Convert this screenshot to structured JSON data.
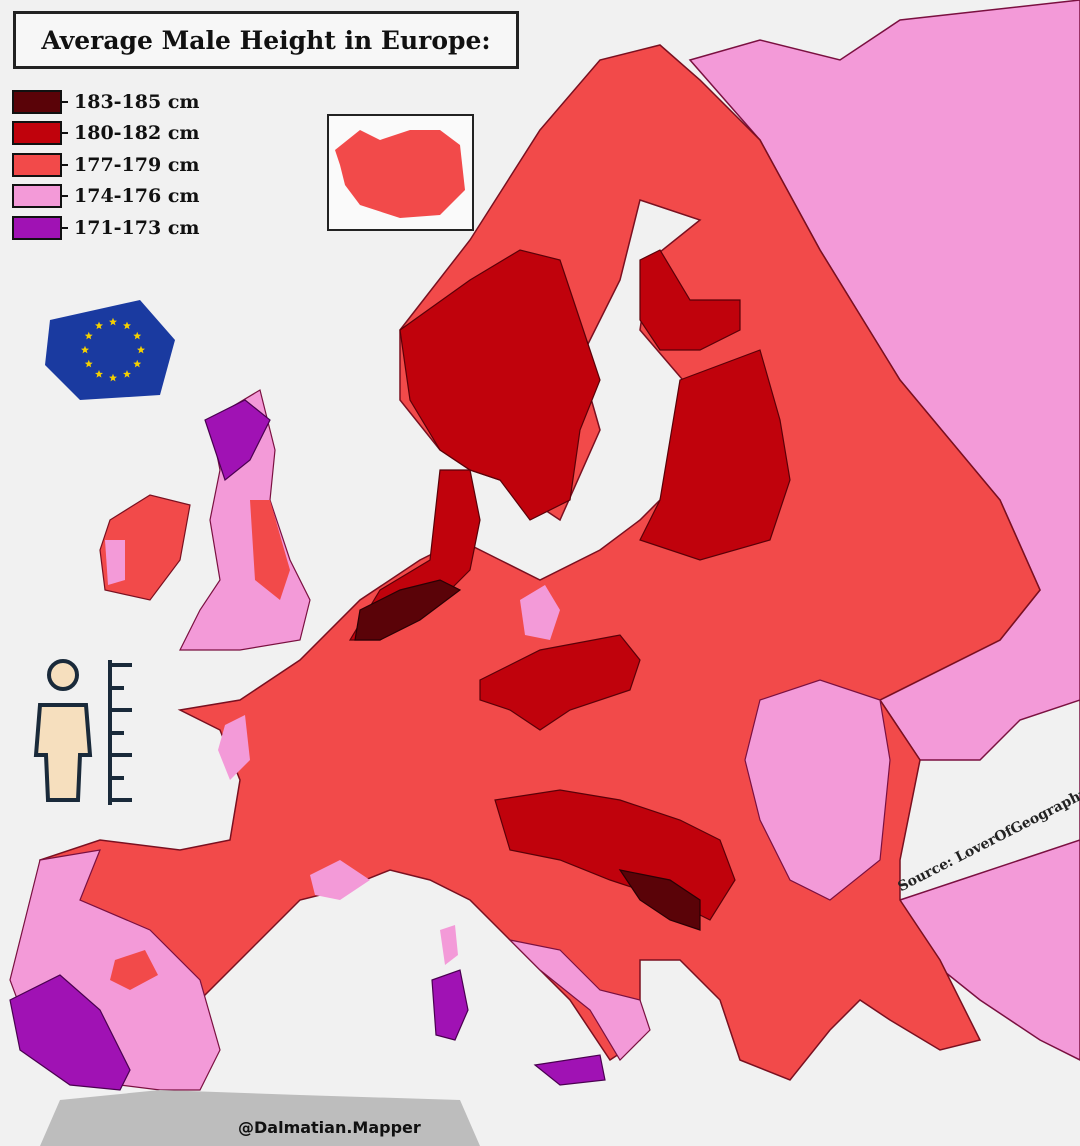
{
  "title": "Average Male Height in Europe:",
  "legend": [
    {
      "label": "183-185 cm",
      "color": "#5a0308"
    },
    {
      "label": "180-182 cm",
      "color": "#c0020c"
    },
    {
      "label": "177-179 cm",
      "color": "#f24a4a"
    },
    {
      "label": "174-176 cm",
      "color": "#f39ad8"
    },
    {
      "label": "171-173 cm",
      "color": "#a012b4"
    }
  ],
  "source": {
    "label": "Source:",
    "value": "LoverOfGeography.com"
  },
  "credit": "@Dalmatian.Mapper",
  "icons": [
    "eu-flag-icon",
    "person-height-ruler-icon",
    "iceland-inset"
  ]
}
